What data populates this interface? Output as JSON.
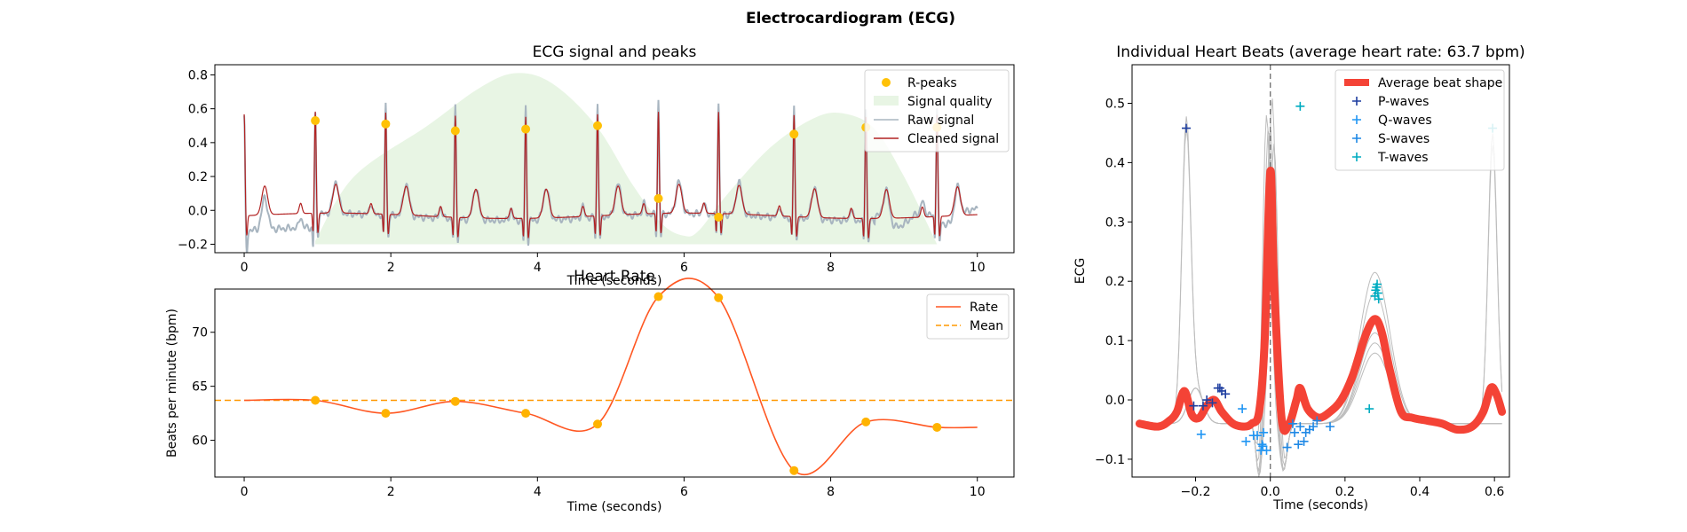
{
  "figure_title": "Electrocardiogram (ECG)",
  "chart_data": [
    {
      "id": "ecg",
      "type": "line",
      "title": "ECG signal and peaks",
      "xlabel": "Time (seconds)",
      "ylabel": "",
      "xlim": [
        -0.4,
        10.5
      ],
      "ylim": [
        -0.25,
        0.86
      ],
      "xticks": [
        0,
        2,
        4,
        6,
        8,
        10
      ],
      "yticks": [
        -0.2,
        0.0,
        0.2,
        0.4,
        0.6,
        0.8
      ],
      "ytick_labels": [
        "−0.2",
        "0.0",
        "0.2",
        "0.4",
        "0.6",
        "0.8"
      ],
      "legend_position": "upper right",
      "beat_times": [
        0.0,
        0.97,
        1.93,
        2.88,
        3.84,
        4.82,
        5.65,
        6.47,
        7.5,
        8.48,
        9.45
      ],
      "r_peaks": {
        "name": "R-peaks",
        "color": "#ffc107",
        "x": [
          0.97,
          1.93,
          2.88,
          3.84,
          4.82,
          5.65,
          6.47,
          7.5,
          8.48,
          9.45
        ],
        "y": [
          0.53,
          0.51,
          0.47,
          0.48,
          0.5,
          0.07,
          -0.04,
          0.45,
          0.49,
          0.49
        ]
      },
      "signal_quality": {
        "name": "Signal quality",
        "color": "#e8f5e4",
        "x": [
          0.97,
          1.5,
          2.5,
          3.2,
          3.7,
          4.2,
          4.8,
          5.3,
          5.7,
          6.0,
          6.2,
          6.6,
          7.2,
          7.8,
          8.2,
          8.6,
          9.0,
          9.45
        ],
        "y": [
          -0.18,
          0.2,
          0.5,
          0.72,
          0.81,
          0.75,
          0.5,
          0.15,
          -0.08,
          -0.15,
          -0.12,
          0.1,
          0.38,
          0.55,
          0.57,
          0.48,
          0.2,
          -0.2
        ]
      },
      "raw_signal": {
        "name": "Raw signal",
        "color": "#a8b5c0"
      },
      "cleaned_signal": {
        "name": "Cleaned signal",
        "color": "#b22222"
      }
    },
    {
      "id": "rate",
      "type": "line",
      "title": "Heart Rate",
      "xlabel": "Time (seconds)",
      "ylabel": "Beats per minute (bpm)",
      "xlim": [
        -0.4,
        10.5
      ],
      "ylim": [
        56.6,
        74.0
      ],
      "xticks": [
        0,
        2,
        4,
        6,
        8,
        10
      ],
      "yticks": [
        60,
        65,
        70
      ],
      "legend_position": "upper right",
      "rate": {
        "name": "Rate",
        "color": "#ff5722",
        "x": [
          0.0,
          0.97,
          1.93,
          2.88,
          3.84,
          4.82,
          5.65,
          6.47,
          7.5,
          8.48,
          9.45,
          10.0
        ],
        "y": [
          63.7,
          63.7,
          62.5,
          63.6,
          62.5,
          61.5,
          73.3,
          73.2,
          57.2,
          61.7,
          61.2,
          61.2
        ]
      },
      "markers": {
        "x": [
          0.97,
          1.93,
          2.88,
          3.84,
          4.82,
          5.65,
          6.47,
          7.5,
          8.48,
          9.45
        ],
        "y": [
          63.7,
          62.5,
          63.6,
          62.5,
          61.5,
          73.3,
          73.2,
          57.2,
          61.7,
          61.2
        ],
        "color": "#ffb300"
      },
      "mean": {
        "name": "Mean",
        "value": 63.7,
        "color": "#ff9800"
      }
    },
    {
      "id": "beats",
      "type": "line",
      "title": "Individual Heart Beats (average heart rate: 63.7 bpm)",
      "xlabel": "Time (seconds)",
      "ylabel": "ECG",
      "xlim": [
        -0.37,
        0.64
      ],
      "ylim": [
        -0.13,
        0.565
      ],
      "xticks": [
        -0.2,
        0.0,
        0.2,
        0.4,
        0.6
      ],
      "xtick_labels": [
        "−0.2",
        "0.0",
        "0.2",
        "0.4",
        "0.6"
      ],
      "yticks": [
        -0.1,
        0.0,
        0.1,
        0.2,
        0.3,
        0.4,
        0.5
      ],
      "ytick_labels": [
        "−0.1",
        "0.0",
        "0.1",
        "0.2",
        "0.3",
        "0.4",
        "0.5"
      ],
      "legend_position": "upper right",
      "average_beat": {
        "name": "Average beat shape",
        "color": "#f44336",
        "x": [
          -0.35,
          -0.3,
          -0.27,
          -0.25,
          -0.23,
          -0.21,
          -0.19,
          -0.17,
          -0.15,
          -0.13,
          -0.1,
          -0.07,
          -0.05,
          -0.03,
          -0.015,
          0.0,
          0.01,
          0.03,
          0.05,
          0.07,
          0.08,
          0.1,
          0.13,
          0.16,
          0.19,
          0.22,
          0.25,
          0.27,
          0.285,
          0.3,
          0.32,
          0.35,
          0.38,
          0.42,
          0.46,
          0.5,
          0.54,
          0.57,
          0.59,
          0.605,
          0.62
        ],
        "y": [
          -0.04,
          -0.045,
          -0.035,
          -0.02,
          0.015,
          -0.025,
          -0.03,
          -0.01,
          0.0,
          -0.02,
          -0.04,
          -0.045,
          -0.04,
          -0.02,
          0.1,
          0.385,
          0.2,
          -0.03,
          -0.04,
          0.0,
          0.02,
          -0.015,
          -0.03,
          -0.02,
          0.0,
          0.04,
          0.1,
          0.13,
          0.135,
          0.11,
          0.05,
          -0.02,
          -0.03,
          -0.035,
          -0.04,
          -0.05,
          -0.045,
          -0.02,
          0.02,
          0.01,
          -0.02
        ]
      },
      "p_waves": {
        "name": "P-waves",
        "color": "#1f3fa0",
        "x": [
          -0.225,
          -0.205,
          -0.18,
          -0.17,
          -0.155,
          -0.14,
          -0.135,
          -0.13,
          -0.12
        ],
        "y": [
          0.458,
          -0.01,
          -0.01,
          0.0,
          -0.005,
          0.02,
          0.02,
          0.015,
          0.01
        ]
      },
      "q_waves": {
        "name": "Q-waves",
        "color": "#2196f3",
        "x": [
          -0.185,
          -0.075,
          -0.065,
          -0.045,
          -0.035,
          -0.025,
          -0.022,
          -0.02,
          -0.018,
          -0.01
        ],
        "y": [
          -0.058,
          -0.015,
          -0.07,
          -0.06,
          -0.06,
          -0.085,
          -0.075,
          -0.078,
          -0.055,
          -0.085
        ]
      },
      "s_waves": {
        "name": "S-waves",
        "color": "#1e88e5",
        "x": [
          0.045,
          0.06,
          0.065,
          0.075,
          0.08,
          0.09,
          0.095,
          0.105,
          0.115,
          0.125,
          0.16
        ],
        "y": [
          -0.08,
          -0.04,
          -0.055,
          -0.075,
          -0.045,
          -0.07,
          -0.055,
          -0.05,
          -0.045,
          -0.035,
          -0.045
        ]
      },
      "t_waves": {
        "name": "T-waves",
        "color": "#00acc1",
        "x": [
          0.08,
          0.265,
          0.28,
          0.282,
          0.284,
          0.286,
          0.288,
          0.29,
          0.595
        ],
        "y": [
          0.495,
          -0.015,
          0.175,
          0.185,
          0.19,
          0.195,
          0.18,
          0.17,
          0.458
        ]
      }
    }
  ]
}
